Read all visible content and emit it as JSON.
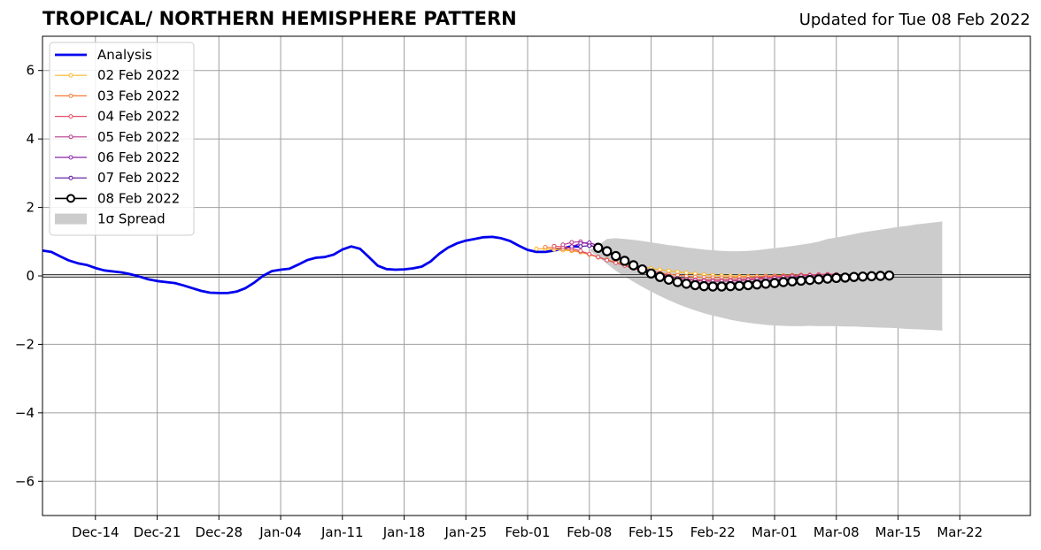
{
  "chart_data": {
    "type": "line",
    "title": "TROPICAL/ NORTHERN HEMISPHERE PATTERN",
    "subtitle": "Updated for Tue 08 Feb 2022",
    "xlabel": "",
    "ylabel": "",
    "x_range": [
      "2021-12-08",
      "2022-03-30"
    ],
    "ylim": [
      -7,
      7
    ],
    "yticks": [
      -6,
      -4,
      -2,
      0,
      2,
      4,
      6
    ],
    "ytick_labels": [
      "−6",
      "−4",
      "−2",
      "0",
      "2",
      "4",
      "6"
    ],
    "xticks": [
      "2021-12-14",
      "2021-12-21",
      "2021-12-28",
      "2022-01-04",
      "2022-01-11",
      "2022-01-18",
      "2022-01-25",
      "2022-02-01",
      "2022-02-08",
      "2022-02-15",
      "2022-02-22",
      "2022-03-01",
      "2022-03-08",
      "2022-03-15",
      "2022-03-22"
    ],
    "xtick_labels": [
      "Dec-14",
      "Dec-21",
      "Dec-28",
      "Jan-04",
      "Jan-11",
      "Jan-18",
      "Jan-25",
      "Feb-01",
      "Feb-08",
      "Feb-15",
      "Feb-22",
      "Mar-01",
      "Mar-08",
      "Mar-15",
      "Mar-22"
    ],
    "grid": true,
    "legend_position": "top-left",
    "legend": [
      "Analysis",
      "02 Feb 2022",
      "03 Feb 2022",
      "04 Feb 2022",
      "05 Feb 2022",
      "06 Feb 2022",
      "07 Feb 2022",
      "08 Feb 2022",
      "1σ Spread"
    ],
    "analysis": {
      "name": "Analysis",
      "color": "#0000ee",
      "points": [
        [
          "2021-12-08",
          0.74
        ],
        [
          "2021-12-09",
          0.7
        ],
        [
          "2021-12-10",
          0.57
        ],
        [
          "2021-12-11",
          0.45
        ],
        [
          "2021-12-12",
          0.37
        ],
        [
          "2021-12-13",
          0.32
        ],
        [
          "2021-12-14",
          0.23
        ],
        [
          "2021-12-15",
          0.16
        ],
        [
          "2021-12-16",
          0.13
        ],
        [
          "2021-12-17",
          0.1
        ],
        [
          "2021-12-18",
          0.05
        ],
        [
          "2021-12-19",
          -0.02
        ],
        [
          "2021-12-20",
          -0.1
        ],
        [
          "2021-12-21",
          -0.15
        ],
        [
          "2021-12-22",
          -0.18
        ],
        [
          "2021-12-23",
          -0.21
        ],
        [
          "2021-12-24",
          -0.28
        ],
        [
          "2021-12-25",
          -0.36
        ],
        [
          "2021-12-26",
          -0.44
        ],
        [
          "2021-12-27",
          -0.49
        ],
        [
          "2021-12-28",
          -0.5
        ],
        [
          "2021-12-29",
          -0.5
        ],
        [
          "2021-12-30",
          -0.46
        ],
        [
          "2021-12-31",
          -0.36
        ],
        [
          "2022-01-01",
          -0.2
        ],
        [
          "2022-01-02",
          0.0
        ],
        [
          "2022-01-03",
          0.14
        ],
        [
          "2022-01-04",
          0.18
        ],
        [
          "2022-01-05",
          0.21
        ],
        [
          "2022-01-06",
          0.33
        ],
        [
          "2022-01-07",
          0.46
        ],
        [
          "2022-01-08",
          0.53
        ],
        [
          "2022-01-09",
          0.55
        ],
        [
          "2022-01-10",
          0.62
        ],
        [
          "2022-01-11",
          0.77
        ],
        [
          "2022-01-12",
          0.86
        ],
        [
          "2022-01-13",
          0.79
        ],
        [
          "2022-01-14",
          0.55
        ],
        [
          "2022-01-15",
          0.3
        ],
        [
          "2022-01-16",
          0.2
        ],
        [
          "2022-01-17",
          0.18
        ],
        [
          "2022-01-18",
          0.19
        ],
        [
          "2022-01-19",
          0.22
        ],
        [
          "2022-01-20",
          0.27
        ],
        [
          "2022-01-21",
          0.42
        ],
        [
          "2022-01-22",
          0.65
        ],
        [
          "2022-01-23",
          0.83
        ],
        [
          "2022-01-24",
          0.95
        ],
        [
          "2022-01-25",
          1.03
        ],
        [
          "2022-01-26",
          1.08
        ],
        [
          "2022-01-27",
          1.13
        ],
        [
          "2022-01-28",
          1.14
        ],
        [
          "2022-01-29",
          1.1
        ],
        [
          "2022-01-30",
          1.02
        ],
        [
          "2022-01-31",
          0.88
        ],
        [
          "2022-02-01",
          0.76
        ],
        [
          "2022-02-02",
          0.7
        ],
        [
          "2022-02-03",
          0.7
        ],
        [
          "2022-02-04",
          0.74
        ],
        [
          "2022-02-05",
          0.8
        ],
        [
          "2022-02-06",
          0.87
        ],
        [
          "2022-02-07",
          0.85
        ]
      ]
    },
    "forecasts": [
      {
        "name": "02 Feb 2022",
        "color": "#fcb72e",
        "marker_interval": 1,
        "start": "2022-02-02",
        "values": [
          0.79,
          0.79,
          0.77,
          0.75,
          0.73,
          0.69,
          0.62,
          0.54,
          0.47,
          0.41,
          0.35,
          0.3,
          0.26,
          0.22,
          0.18,
          0.15,
          0.12,
          0.09,
          0.06,
          0.04,
          0.02,
          0.01,
          0.0,
          -0.01,
          -0.01,
          -0.01,
          0.0,
          0.0,
          0.01,
          0.02,
          0.03,
          0.03,
          0.04,
          0.04,
          0.04
        ]
      },
      {
        "name": "03 Feb 2022",
        "color": "#f47b35",
        "marker_interval": 1,
        "start": "2022-02-03",
        "values": [
          0.84,
          0.82,
          0.79,
          0.75,
          0.7,
          0.63,
          0.55,
          0.47,
          0.39,
          0.32,
          0.25,
          0.19,
          0.14,
          0.09,
          0.05,
          0.02,
          -0.01,
          -0.03,
          -0.04,
          -0.05,
          -0.05,
          -0.05,
          -0.04,
          -0.03,
          -0.02,
          -0.01,
          0.0,
          0.01,
          0.02,
          0.03,
          0.03,
          0.04,
          0.04,
          0.04
        ]
      },
      {
        "name": "04 Feb 2022",
        "color": "#e24c64",
        "marker_interval": 1,
        "start": "2022-02-04",
        "values": [
          0.87,
          0.85,
          0.8,
          0.73,
          0.64,
          0.55,
          0.46,
          0.38,
          0.3,
          0.22,
          0.15,
          0.09,
          0.03,
          -0.02,
          -0.06,
          -0.09,
          -0.11,
          -0.12,
          -0.12,
          -0.12,
          -0.11,
          -0.1,
          -0.09,
          -0.07,
          -0.05,
          -0.03,
          -0.01,
          0.01,
          0.02,
          0.03,
          0.04,
          0.05,
          0.05
        ]
      },
      {
        "name": "05 Feb 2022",
        "color": "#b63b8b",
        "marker_interval": 1,
        "start": "2022-02-05",
        "values": [
          0.91,
          0.98,
          1.0,
          0.92,
          0.8,
          0.68,
          0.56,
          0.45,
          0.34,
          0.24,
          0.15,
          0.07,
          0.0,
          -0.06,
          -0.1,
          -0.13,
          -0.15,
          -0.16,
          -0.16,
          -0.15,
          -0.14,
          -0.12,
          -0.1,
          -0.08,
          -0.06,
          -0.04,
          -0.02,
          0.0,
          0.01,
          0.02,
          0.03,
          0.04
        ]
      },
      {
        "name": "06 Feb 2022",
        "color": "#8a23ac",
        "marker_interval": 1,
        "start": "2022-02-06",
        "values": [
          0.86,
          0.95,
          0.97,
          0.88,
          0.75,
          0.6,
          0.45,
          0.32,
          0.2,
          0.09,
          0.0,
          -0.07,
          -0.13,
          -0.17,
          -0.2,
          -0.22,
          -0.23,
          -0.23,
          -0.22,
          -0.2,
          -0.18,
          -0.16,
          -0.14,
          -0.12,
          -0.1,
          -0.08,
          -0.06,
          -0.04,
          -0.02,
          -0.01,
          0.0
        ]
      },
      {
        "name": "07 Feb 2022",
        "color": "#5a10a0",
        "marker_interval": 1,
        "start": "2022-02-07",
        "values": [
          0.86,
          0.88,
          0.83,
          0.73,
          0.6,
          0.45,
          0.32,
          0.2,
          0.09,
          -0.01,
          -0.09,
          -0.16,
          -0.21,
          -0.25,
          -0.27,
          -0.28,
          -0.28,
          -0.27,
          -0.25,
          -0.23,
          -0.2,
          -0.18,
          -0.15,
          -0.13,
          -0.11,
          -0.09,
          -0.07,
          -0.05,
          -0.03,
          -0.02
        ]
      },
      {
        "name": "08 Feb 2022",
        "color": "#000000",
        "marker_interval": 1,
        "start": "2022-02-09",
        "values": [
          0.82,
          0.72,
          0.58,
          0.44,
          0.31,
          0.19,
          0.07,
          -0.03,
          -0.11,
          -0.18,
          -0.23,
          -0.27,
          -0.3,
          -0.31,
          -0.31,
          -0.3,
          -0.29,
          -0.27,
          -0.25,
          -0.23,
          -0.21,
          -0.18,
          -0.16,
          -0.14,
          -0.12,
          -0.1,
          -0.08,
          -0.06,
          -0.05,
          -0.03,
          -0.02,
          -0.01,
          0.0,
          0.01
        ]
      }
    ],
    "spread": {
      "name": "1σ Spread",
      "color": "#cccccc",
      "start": "2022-02-08",
      "upper": [
        0.75,
        0.9,
        1.08,
        1.1,
        1.08,
        1.05,
        1.02,
        0.98,
        0.94,
        0.9,
        0.87,
        0.83,
        0.8,
        0.77,
        0.75,
        0.73,
        0.72,
        0.72,
        0.73,
        0.75,
        0.78,
        0.81,
        0.84,
        0.87,
        0.91,
        0.95,
        1.0,
        1.08,
        1.12,
        1.17,
        1.22,
        1.27,
        1.31,
        1.35,
        1.39,
        1.43,
        1.46,
        1.5,
        1.53,
        1.56,
        1.59
      ],
      "lower": [
        0.75,
        0.55,
        0.35,
        0.15,
        -0.02,
        -0.17,
        -0.32,
        -0.46,
        -0.59,
        -0.71,
        -0.82,
        -0.92,
        -1.01,
        -1.09,
        -1.16,
        -1.22,
        -1.28,
        -1.33,
        -1.37,
        -1.4,
        -1.43,
        -1.45,
        -1.46,
        -1.47,
        -1.47,
        -1.46,
        -1.47,
        -1.47,
        -1.47,
        -1.48,
        -1.48,
        -1.49,
        -1.5,
        -1.51,
        -1.52,
        -1.53,
        -1.55,
        -1.56,
        -1.57,
        -1.58,
        -1.6
      ]
    }
  }
}
